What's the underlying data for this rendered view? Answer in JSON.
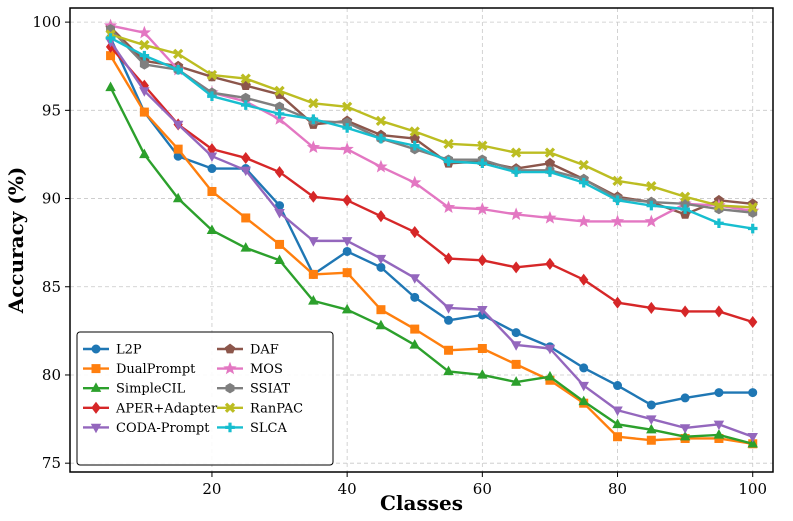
{
  "chart_data": {
    "type": "line",
    "title": "",
    "xlabel": "Classes",
    "ylabel": "Accuracy (%)",
    "xlim": [
      0,
      100
    ],
    "ylim": [
      75,
      100
    ],
    "x_ticks": [
      20,
      40,
      60,
      80,
      100
    ],
    "y_ticks": [
      75,
      80,
      85,
      90,
      95,
      100
    ],
    "grid": true,
    "legend_position": "lower-left",
    "x": [
      5,
      10,
      15,
      20,
      25,
      30,
      35,
      40,
      45,
      50,
      55,
      60,
      65,
      70,
      75,
      80,
      85,
      90,
      95,
      100
    ],
    "series": [
      {
        "name": "L2P",
        "color": "#1f77b4",
        "marker": "circle",
        "values": [
          99.1,
          94.9,
          92.4,
          91.7,
          91.7,
          89.6,
          85.7,
          87.0,
          86.1,
          84.4,
          83.1,
          83.4,
          82.4,
          81.6,
          80.4,
          79.4,
          78.3,
          78.7,
          79.0,
          79.0
        ]
      },
      {
        "name": "DualPrompt",
        "color": "#ff7f0e",
        "marker": "square",
        "values": [
          98.1,
          94.9,
          92.8,
          90.4,
          88.9,
          87.4,
          85.7,
          85.8,
          83.7,
          82.6,
          81.4,
          81.5,
          80.6,
          79.7,
          78.4,
          76.5,
          76.3,
          76.4,
          76.4,
          76.1
        ]
      },
      {
        "name": "SimpleCIL",
        "color": "#2ca02c",
        "marker": "triangle-up",
        "values": [
          96.3,
          92.5,
          90.0,
          88.2,
          87.2,
          86.5,
          84.2,
          83.7,
          82.8,
          81.7,
          80.2,
          80.0,
          79.6,
          79.9,
          78.5,
          77.2,
          76.9,
          76.5,
          76.6,
          76.1
        ]
      },
      {
        "name": "APER+Adapter",
        "color": "#d62728",
        "marker": "diamond",
        "values": [
          98.6,
          96.4,
          94.2,
          92.8,
          92.3,
          91.5,
          90.1,
          89.9,
          89.0,
          88.1,
          86.6,
          86.5,
          86.1,
          86.3,
          85.4,
          84.1,
          83.8,
          83.6,
          83.6,
          83.0
        ]
      },
      {
        "name": "CODA-Prompt",
        "color": "#9467bd",
        "marker": "triangle-down",
        "values": [
          98.9,
          96.1,
          94.2,
          92.4,
          91.6,
          89.2,
          87.6,
          87.6,
          86.6,
          85.5,
          83.8,
          83.7,
          81.7,
          81.5,
          79.4,
          78.0,
          77.5,
          77.0,
          77.2,
          76.5
        ]
      },
      {
        "name": "DAF",
        "color": "#8c564b",
        "marker": "pentagon",
        "values": [
          99.7,
          97.8,
          97.5,
          96.9,
          96.4,
          95.9,
          94.2,
          94.4,
          93.6,
          93.4,
          92.0,
          92.1,
          91.7,
          92.0,
          91.1,
          90.1,
          89.8,
          89.1,
          89.9,
          89.7
        ]
      },
      {
        "name": "MOS",
        "color": "#e377c2",
        "marker": "star",
        "values": [
          99.8,
          99.4,
          97.3,
          96.0,
          95.5,
          94.5,
          92.9,
          92.8,
          91.8,
          90.9,
          89.5,
          89.4,
          89.1,
          88.9,
          88.7,
          88.7,
          88.7,
          89.7,
          89.6,
          89.3
        ]
      },
      {
        "name": "SSIAT",
        "color": "#7f7f7f",
        "marker": "hexagon",
        "values": [
          99.6,
          97.6,
          97.3,
          96.0,
          95.7,
          95.2,
          94.4,
          94.3,
          93.4,
          92.8,
          92.2,
          92.2,
          91.6,
          91.6,
          91.1,
          90.0,
          89.8,
          89.7,
          89.4,
          89.2
        ]
      },
      {
        "name": "RanPAC",
        "color": "#bcbd22",
        "marker": "x",
        "values": [
          99.3,
          98.7,
          98.2,
          97.0,
          96.8,
          96.1,
          95.4,
          95.2,
          94.4,
          93.8,
          93.1,
          93.0,
          92.6,
          92.6,
          91.9,
          91.0,
          90.7,
          90.1,
          89.6,
          89.5
        ]
      },
      {
        "name": "SLCA",
        "color": "#17becf",
        "marker": "plus",
        "values": [
          99.1,
          98.1,
          97.3,
          95.8,
          95.3,
          94.8,
          94.5,
          94.0,
          93.4,
          93.0,
          92.1,
          92.0,
          91.5,
          91.5,
          90.9,
          89.9,
          89.6,
          89.4,
          88.6,
          88.3
        ]
      }
    ]
  }
}
